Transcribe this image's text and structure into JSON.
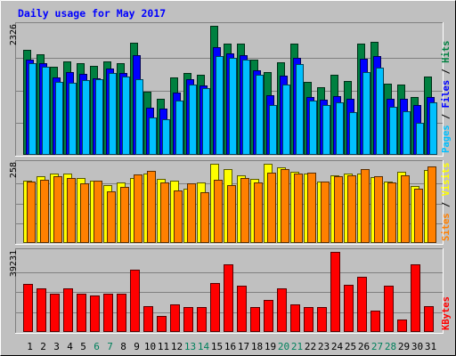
{
  "chart_data": {
    "type": "bar",
    "title": "Daily usage for May 2017",
    "categories": [
      "1",
      "2",
      "3",
      "4",
      "5",
      "6",
      "7",
      "8",
      "9",
      "10",
      "11",
      "12",
      "13",
      "14",
      "15",
      "16",
      "17",
      "18",
      "19",
      "20",
      "21",
      "22",
      "23",
      "24",
      "25",
      "26",
      "27",
      "28",
      "29",
      "30",
      "31"
    ],
    "weekend_days": [
      "6",
      "7",
      "13",
      "14",
      "20",
      "21",
      "27",
      "28"
    ],
    "panels": [
      {
        "id": "hits-files-pages",
        "max_label": "2326",
        "ymax": 2326,
        "right_labels": [
          {
            "text": "Pages",
            "color": "#00c0ff"
          },
          {
            "text": " / ",
            "color": "#000000"
          },
          {
            "text": "Files",
            "color": "#0000ff"
          },
          {
            "text": " / ",
            "color": "#000000"
          },
          {
            "text": "Hits",
            "color": "#008040"
          }
        ],
        "series": [
          {
            "name": "Hits",
            "color": "#008040",
            "values": [
              1896,
              1818,
              1592,
              1692,
              1656,
              1611,
              1692,
              1656,
              2022,
              1143,
              1008,
              1395,
              1476,
              1440,
              2326,
              2004,
              2004,
              1710,
              1485,
              1665,
              1998,
              1314,
              1215,
              1449,
              1332,
              1998,
              2040,
              1287,
              1269,
              1035,
              1404
            ]
          },
          {
            "name": "Files",
            "color": "#0000ff",
            "values": [
              1710,
              1647,
              1395,
              1494,
              1458,
              1377,
              1557,
              1476,
              1791,
              855,
              837,
              1116,
              1359,
              1251,
              1935,
              1836,
              1791,
              1521,
              1080,
              1431,
              1755,
              1035,
              999,
              1053,
              1017,
              1728,
              1782,
              1008,
              1008,
              891,
              1044
            ]
          },
          {
            "name": "Pages",
            "color": "#00c0ff",
            "values": [
              1647,
              1584,
              1323,
              1296,
              1350,
              1368,
              1476,
              1404,
              1359,
              675,
              639,
              981,
              1260,
              1206,
              1773,
              1755,
              1719,
              1449,
              900,
              1269,
              1638,
              972,
              891,
              945,
              765,
              1485,
              1566,
              864,
              792,
              576,
              945
            ]
          }
        ]
      },
      {
        "id": "visits-sites",
        "max_label": "258",
        "ymax": 258,
        "right_labels": [
          {
            "text": "Sites",
            "color": "#ff8000"
          },
          {
            "text": " / ",
            "color": "#000000"
          },
          {
            "text": "Visits",
            "color": "#ffff00"
          }
        ],
        "series": [
          {
            "name": "Visits",
            "color": "#ffff00",
            "values": [
              204,
              217,
              227,
              226,
              212,
              203,
              187,
              198,
              211,
              227,
              210,
              203,
              177,
              196,
              258,
              240,
              220,
              208,
              258,
              246,
              232,
              227,
              200,
              220,
              227,
              225,
              214,
              199,
              231,
              185,
              238
            ]
          },
          {
            "name": "Sites",
            "color": "#ff8000",
            "values": [
              201,
              205,
              218,
              213,
              193,
              202,
              169,
              182,
              223,
              236,
              197,
              171,
              193,
              165,
              207,
              189,
              213,
              197,
              229,
              241,
              225,
              229,
              201,
              217,
              221,
              242,
              218,
              198,
              220,
              178,
              250
            ]
          }
        ]
      },
      {
        "id": "kbytes",
        "max_label": "39231",
        "ymax": 39231,
        "right_labels": [
          {
            "text": "KBytes",
            "color": "#ff0000"
          }
        ],
        "series": [
          {
            "name": "KBytes",
            "color": "#ff0000",
            "values": [
              23536,
              21413,
              18889,
              21152,
              18596,
              17924,
              18596,
              18596,
              30693,
              12838,
              7921,
              13508,
              12163,
              12163,
              23972,
              33214,
              22697,
              12163,
              15518,
              21413,
              13508,
              12163,
              12163,
              39231,
              23031,
              27231,
              10481,
              22697,
              6087,
              33214,
              12838
            ]
          }
        ]
      }
    ]
  }
}
